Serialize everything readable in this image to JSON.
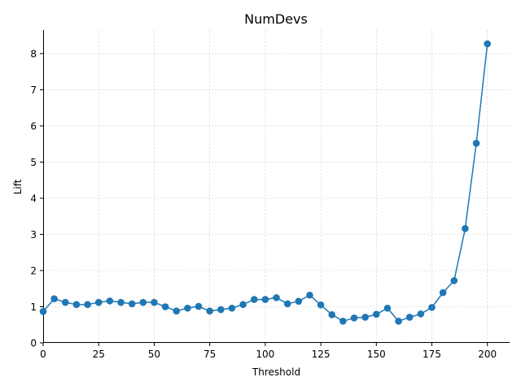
{
  "chart_data": {
    "type": "line",
    "title": "NumDevs",
    "xlabel": "Threshold",
    "ylabel": "Lift",
    "xlim": [
      0,
      210
    ],
    "ylim": [
      0,
      8.65
    ],
    "xticks": [
      0,
      25,
      50,
      75,
      100,
      125,
      150,
      175,
      200
    ],
    "yticks": [
      0,
      1,
      2,
      3,
      4,
      5,
      6,
      7,
      8
    ],
    "grid": true,
    "color": "#1f77b4",
    "marker": "circle",
    "series": [
      {
        "x": [
          0,
          5,
          10,
          15,
          20,
          25,
          30,
          35,
          40,
          45,
          50,
          55,
          60,
          65,
          70,
          75,
          80,
          85,
          90,
          95,
          100,
          105,
          110,
          115,
          120,
          125,
          130,
          135,
          140,
          145,
          150,
          155,
          160,
          165,
          170,
          175,
          180,
          185,
          190,
          195,
          200
        ],
        "values": [
          0.87,
          1.22,
          1.12,
          1.06,
          1.06,
          1.12,
          1.16,
          1.12,
          1.08,
          1.12,
          1.12,
          1.0,
          0.88,
          0.96,
          1.01,
          0.88,
          0.92,
          0.96,
          1.06,
          1.2,
          1.2,
          1.25,
          1.08,
          1.15,
          1.32,
          1.05,
          0.78,
          0.6,
          0.69,
          0.71,
          0.79,
          0.96,
          0.6,
          0.71,
          0.8,
          0.98,
          1.39,
          1.72,
          3.16,
          5.52,
          8.27
        ]
      }
    ]
  }
}
